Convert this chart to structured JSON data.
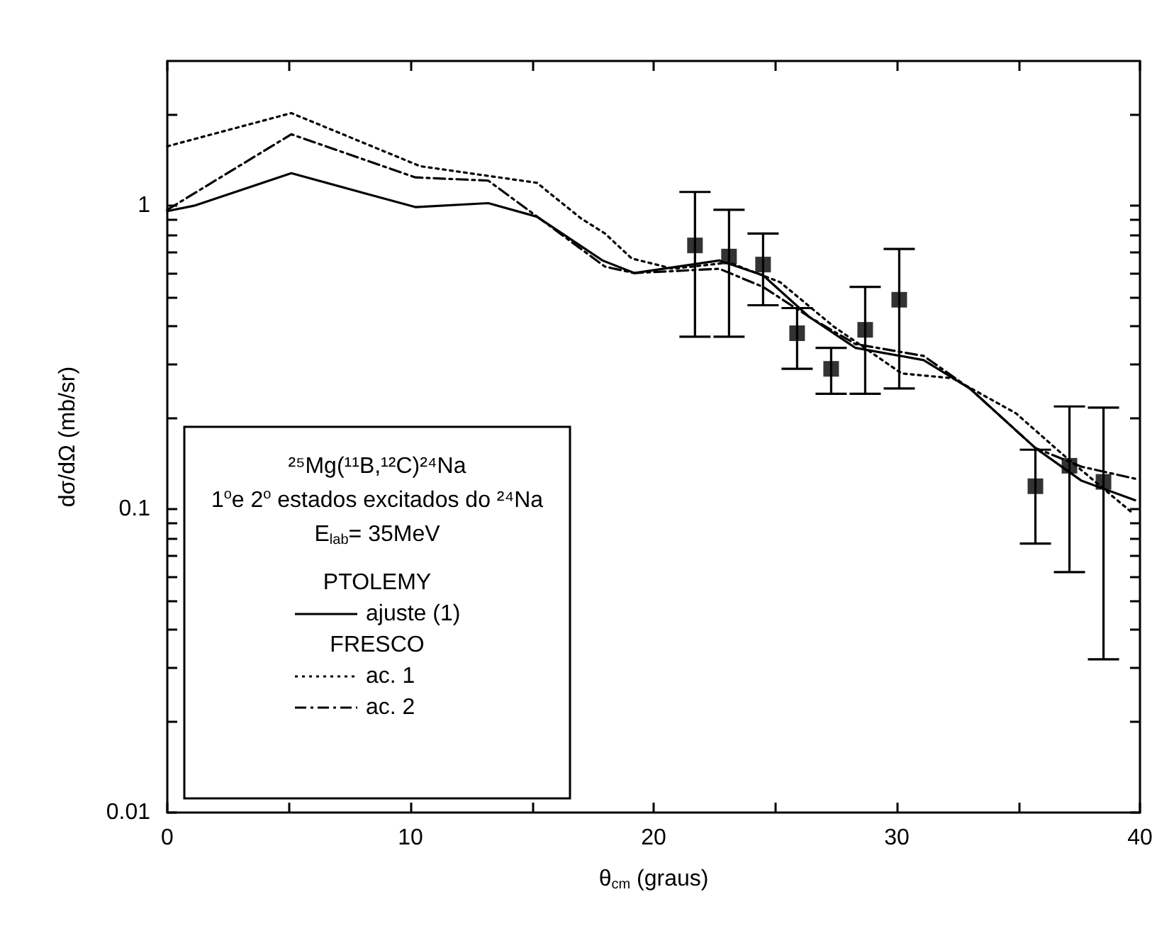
{
  "chart_data": {
    "type": "line",
    "xlabel": "θ$_{cm}$ (graus)",
    "ylabel": "dσ/dΩ (mb/sr)",
    "legend_title": "²⁵Mg(¹¹B,¹²C)²⁴Na\n1$^{o}$e 2$^{o}$ estados excitados do ²⁴Na\nE$_{lab}$= 35MeV",
    "annotations": [
      "PTOLEMY",
      "FRESCO"
    ],
    "log": "y",
    "grid": false,
    "legend": "bottom left",
    "xlim": [
      0,
      40
    ],
    "xticks": [
      0,
      {
        "value": 5,
        "label": null
      },
      10,
      {
        "value": 15,
        "label": null
      },
      20,
      {
        "value": 25,
        "label": null
      },
      30,
      {
        "value": 35,
        "label": null
      },
      40
    ],
    "ylim": [
      0.01,
      3
    ],
    "yticks": [
      0.01,
      {
        "value": 0.02,
        "label": null
      },
      {
        "value": 0.03,
        "label": null
      },
      {
        "value": 0.04,
        "label": null
      },
      {
        "value": 0.05,
        "label": null
      },
      {
        "value": 0.06,
        "label": null
      },
      {
        "value": 0.07,
        "label": null
      },
      {
        "value": 0.08,
        "label": null
      },
      {
        "value": 0.09,
        "label": null
      },
      0.1,
      {
        "value": 0.2,
        "label": null
      },
      {
        "value": 0.3,
        "label": null
      },
      {
        "value": 0.4,
        "label": null
      },
      {
        "value": 0.5,
        "label": null
      },
      {
        "value": 0.6,
        "label": null
      },
      {
        "value": 0.7,
        "label": null
      },
      {
        "value": 0.8,
        "label": null
      },
      {
        "value": 0.9,
        "label": null
      },
      1,
      {
        "value": 2,
        "label": null
      }
    ],
    "series": [
      {
        "name": "ajuste (1)",
        "line_style": "solid",
        "marker": "none",
        "color": "#000000",
        "x": [
          0,
          1.1,
          5.1,
          10.2,
          13.2,
          15.2,
          17.9,
          19.2,
          22.7,
          24.5,
          26.4,
          28.3,
          31.1,
          33.0,
          35.7,
          37.6,
          39.8
        ],
        "values": [
          0.96,
          1.0,
          1.28,
          0.99,
          1.02,
          0.92,
          0.66,
          0.6,
          0.66,
          0.59,
          0.43,
          0.34,
          0.31,
          0.25,
          0.159,
          0.124,
          0.107
        ]
      },
      {
        "name": "ac. 1",
        "line_style": "dotted",
        "marker": "none",
        "color": "#000000",
        "x": [
          0,
          5.1,
          10.4,
          15.2,
          17.0,
          18.0,
          19.1,
          20.8,
          23.1,
          25.2,
          27.4,
          30.2,
          32.3,
          34.9,
          36.8,
          39.7
        ],
        "values": [
          1.57,
          2.02,
          1.35,
          1.19,
          0.91,
          0.81,
          0.67,
          0.62,
          0.65,
          0.56,
          0.4,
          0.28,
          0.27,
          0.207,
          0.152,
          0.097
        ]
      },
      {
        "name": "ac. 2",
        "line_style": "dashed",
        "marker": "none",
        "color": "#000000",
        "x": [
          0,
          5.1,
          10.2,
          13.2,
          18.0,
          19.2,
          22.7,
          24.5,
          26.4,
          28.3,
          31.1,
          33.0,
          35.7,
          37.6,
          39.8
        ],
        "values": [
          0.97,
          1.72,
          1.24,
          1.21,
          0.63,
          0.6,
          0.62,
          0.54,
          0.43,
          0.35,
          0.32,
          0.25,
          0.159,
          0.138,
          0.126
        ]
      },
      {
        "type": "scatter",
        "marker": "square",
        "color": "#000000",
        "x": [
          21.7,
          23.1,
          24.5,
          25.9,
          27.3,
          28.7,
          30.1,
          35.7,
          37.1,
          38.5
        ],
        "values": [
          0.74,
          0.68,
          0.64,
          0.38,
          0.29,
          0.39,
          0.49,
          0.119,
          0.139,
          0.123
        ],
        "errors": [
          [
            0.37,
            1.11
          ],
          [
            0.37,
            0.97
          ],
          [
            0.47,
            0.81
          ],
          [
            0.29,
            0.46
          ],
          [
            0.24,
            0.34
          ],
          [
            0.24,
            0.54
          ],
          [
            0.25,
            0.72
          ],
          [
            0.077,
            0.157
          ],
          [
            0.062,
            0.218
          ],
          [
            0.032,
            0.216
          ]
        ]
      }
    ]
  }
}
